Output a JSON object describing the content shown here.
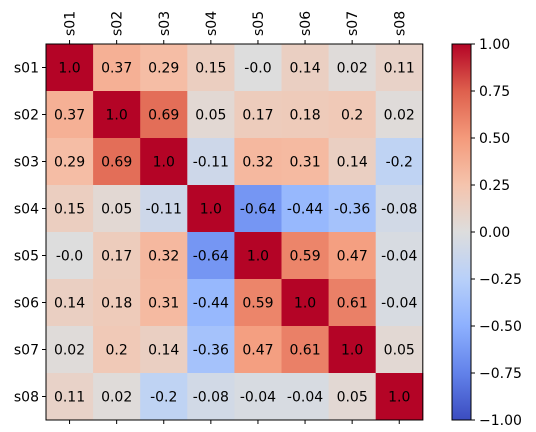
{
  "chart_data": {
    "type": "heatmap",
    "title": "",
    "xlabel": "",
    "ylabel": "",
    "x_categories": [
      "s01",
      "s02",
      "s03",
      "s04",
      "s05",
      "s06",
      "s07",
      "s08"
    ],
    "y_categories": [
      "s01",
      "s02",
      "s03",
      "s04",
      "s05",
      "s06",
      "s07",
      "s08"
    ],
    "values": [
      [
        1.0,
        0.37,
        0.29,
        0.15,
        -0.0,
        0.14,
        0.02,
        0.11
      ],
      [
        0.37,
        1.0,
        0.69,
        0.05,
        0.17,
        0.18,
        0.2,
        0.02
      ],
      [
        0.29,
        0.69,
        1.0,
        -0.11,
        0.32,
        0.31,
        0.14,
        -0.2
      ],
      [
        0.15,
        0.05,
        -0.11,
        1.0,
        -0.64,
        -0.44,
        -0.36,
        -0.08
      ],
      [
        -0.0,
        0.17,
        0.32,
        -0.64,
        1.0,
        0.59,
        0.47,
        -0.04
      ],
      [
        0.14,
        0.18,
        0.31,
        -0.44,
        0.59,
        1.0,
        0.61,
        -0.04
      ],
      [
        0.02,
        0.2,
        0.14,
        -0.36,
        0.47,
        0.61,
        1.0,
        0.05
      ],
      [
        0.11,
        0.02,
        -0.2,
        -0.08,
        -0.04,
        -0.04,
        0.05,
        1.0
      ]
    ],
    "cell_labels": [
      [
        "1.0",
        "0.37",
        "0.29",
        "0.15",
        "-0.0",
        "0.14",
        "0.02",
        "0.11"
      ],
      [
        "0.37",
        "1.0",
        "0.69",
        "0.05",
        "0.17",
        "0.18",
        "0.2",
        "0.02"
      ],
      [
        "0.29",
        "0.69",
        "1.0",
        "-0.11",
        "0.32",
        "0.31",
        "0.14",
        "-0.2"
      ],
      [
        "0.15",
        "0.05",
        "-0.11",
        "1.0",
        "-0.64",
        "-0.44",
        "-0.36",
        "-0.08"
      ],
      [
        "-0.0",
        "0.17",
        "0.32",
        "-0.64",
        "1.0",
        "0.59",
        "0.47",
        "-0.04"
      ],
      [
        "0.14",
        "0.18",
        "0.31",
        "-0.44",
        "0.59",
        "1.0",
        "0.61",
        "-0.04"
      ],
      [
        "0.02",
        "0.2",
        "0.14",
        "-0.36",
        "0.47",
        "0.61",
        "1.0",
        "0.05"
      ],
      [
        "0.11",
        "0.02",
        "-0.2",
        "-0.08",
        "-0.04",
        "-0.04",
        "0.05",
        "1.0"
      ]
    ],
    "x_ticks_position": "top",
    "colormap": "coolwarm",
    "vmin": -1.0,
    "vmax": 1.0,
    "colorbar": {
      "ticks": [
        1.0,
        0.75,
        0.5,
        0.25,
        0.0,
        -0.25,
        -0.5,
        -0.75,
        -1.0
      ],
      "tick_labels": [
        "1.00",
        "0.75",
        "0.50",
        "0.25",
        "0.00",
        "−0.25",
        "−0.50",
        "−0.75",
        "−1.00"
      ]
    }
  }
}
